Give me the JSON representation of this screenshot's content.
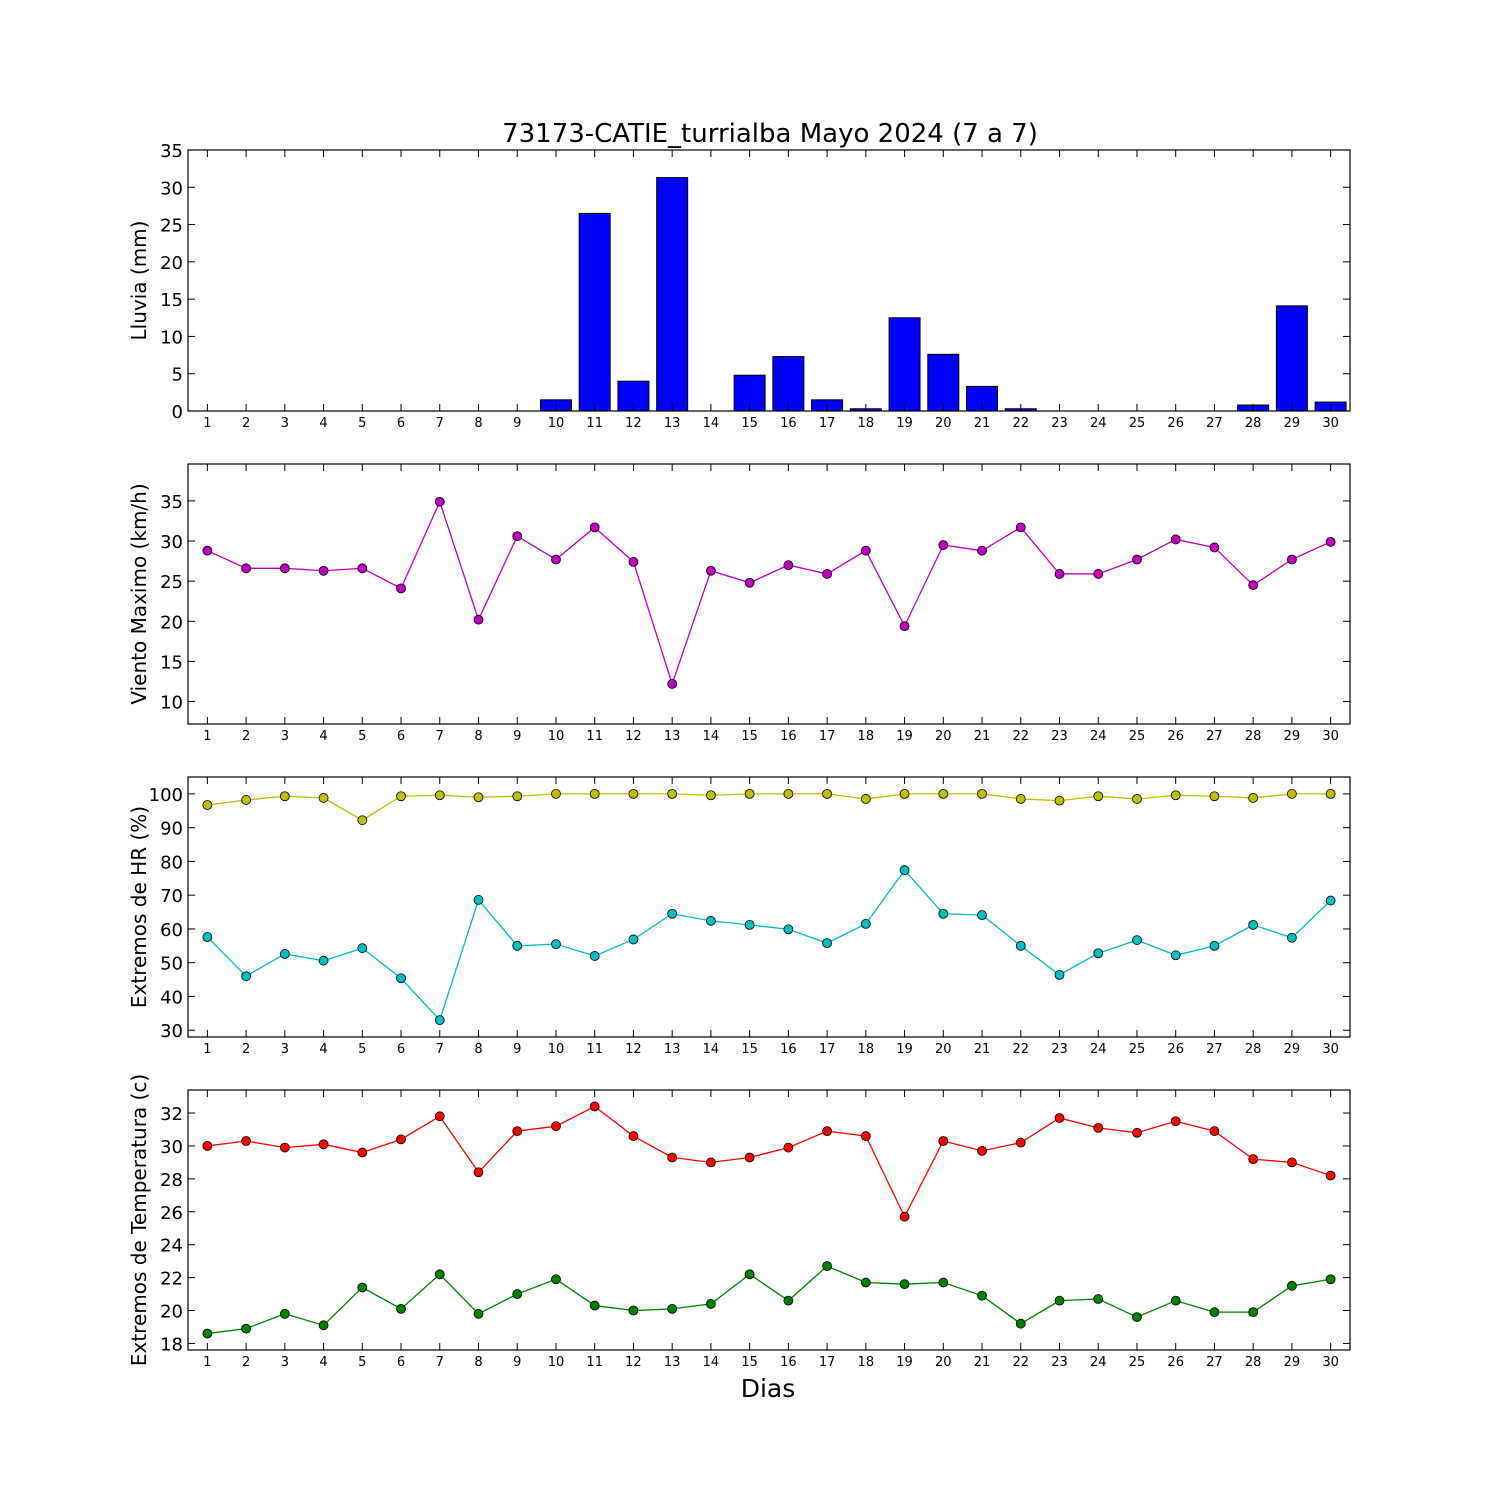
{
  "title": "73173-CATIE_turrialba Mayo 2024  (7 a 7)",
  "xlabel": "Dias",
  "chart_data": [
    {
      "type": "bar",
      "ylabel": "Lluvia (mm)",
      "categories": [
        1,
        2,
        3,
        4,
        5,
        6,
        7,
        8,
        9,
        10,
        11,
        12,
        13,
        14,
        15,
        16,
        17,
        18,
        19,
        20,
        21,
        22,
        23,
        24,
        25,
        26,
        27,
        28,
        29,
        30
      ],
      "ylim": [
        0,
        35
      ],
      "yticks": [
        0,
        5,
        10,
        15,
        20,
        25,
        30,
        35
      ],
      "series": [
        {
          "color": "#0000ff",
          "values": [
            0,
            0,
            0,
            0,
            0,
            0,
            0,
            0,
            0,
            1.5,
            26.5,
            4.0,
            31.3,
            0,
            4.8,
            7.3,
            1.5,
            0.3,
            12.5,
            7.6,
            3.3,
            0.3,
            0,
            0,
            0,
            0,
            0,
            0.8,
            14.1,
            1.2
          ]
        }
      ]
    },
    {
      "type": "line",
      "ylabel": "Viento Maximo (km/h)",
      "categories": [
        1,
        2,
        3,
        4,
        5,
        6,
        7,
        8,
        9,
        10,
        11,
        12,
        13,
        14,
        15,
        16,
        17,
        18,
        19,
        20,
        21,
        22,
        23,
        24,
        25,
        26,
        27,
        28,
        29,
        30
      ],
      "ylim": [
        7.2,
        39.6
      ],
      "yticks": [
        10,
        15,
        20,
        25,
        30,
        35
      ],
      "series": [
        {
          "color": "#bf00bf",
          "values": [
            28.8,
            26.6,
            26.6,
            26.3,
            26.6,
            24.1,
            34.9,
            20.2,
            30.6,
            27.7,
            31.7,
            27.4,
            12.2,
            26.3,
            24.8,
            27.0,
            25.9,
            28.8,
            19.4,
            29.5,
            28.8,
            31.7,
            25.9,
            25.9,
            27.7,
            30.2,
            29.2,
            24.5,
            27.7,
            29.9
          ]
        }
      ]
    },
    {
      "type": "line",
      "ylabel": "Extremos de HR (%)",
      "categories": [
        1,
        2,
        3,
        4,
        5,
        6,
        7,
        8,
        9,
        10,
        11,
        12,
        13,
        14,
        15,
        16,
        17,
        18,
        19,
        20,
        21,
        22,
        23,
        24,
        25,
        26,
        27,
        28,
        29,
        30
      ],
      "ylim": [
        28,
        105
      ],
      "yticks": [
        30,
        40,
        50,
        60,
        70,
        80,
        90,
        100
      ],
      "series": [
        {
          "color": "#bfbf00",
          "values": [
            96.7,
            98.2,
            99.3,
            98.8,
            92.2,
            99.3,
            99.6,
            99.0,
            99.3,
            100,
            100,
            100,
            100,
            99.6,
            100,
            100,
            100,
            98.5,
            100,
            100,
            100,
            98.5,
            98.0,
            99.3,
            98.5,
            99.6,
            99.3,
            98.8,
            100,
            100
          ]
        },
        {
          "color": "#00bfbf",
          "values": [
            57.6,
            46.0,
            52.6,
            50.6,
            54.3,
            45.4,
            33.0,
            68.6,
            55.0,
            55.5,
            52.0,
            56.9,
            64.5,
            62.4,
            61.2,
            59.9,
            55.8,
            61.5,
            77.4,
            64.5,
            64.1,
            55.0,
            46.4,
            52.8,
            56.7,
            52.2,
            55.0,
            61.2,
            57.4,
            68.4
          ]
        }
      ]
    },
    {
      "type": "line",
      "ylabel": "Extremos de Temperatura (c)",
      "categories": [
        1,
        2,
        3,
        4,
        5,
        6,
        7,
        8,
        9,
        10,
        11,
        12,
        13,
        14,
        15,
        16,
        17,
        18,
        19,
        20,
        21,
        22,
        23,
        24,
        25,
        26,
        27,
        28,
        29,
        30
      ],
      "ylim": [
        17.6,
        33.4
      ],
      "yticks": [
        18,
        20,
        22,
        24,
        26,
        28,
        30,
        32
      ],
      "series": [
        {
          "color": "#ff0000",
          "values": [
            30.0,
            30.3,
            29.9,
            30.1,
            29.6,
            30.4,
            31.8,
            28.4,
            30.9,
            31.2,
            32.4,
            30.6,
            29.3,
            29.0,
            29.3,
            29.9,
            30.9,
            30.6,
            25.7,
            30.3,
            29.7,
            30.2,
            31.7,
            31.1,
            30.8,
            31.5,
            30.9,
            29.2,
            29.0,
            28.2
          ]
        },
        {
          "color": "#008000",
          "values": [
            18.6,
            18.9,
            19.8,
            19.1,
            21.4,
            20.1,
            22.2,
            19.8,
            21.0,
            21.9,
            20.3,
            20.0,
            20.1,
            20.4,
            22.2,
            20.6,
            22.7,
            21.7,
            21.6,
            21.7,
            20.9,
            19.2,
            20.6,
            20.7,
            19.6,
            20.6,
            19.9,
            19.9,
            21.5,
            21.9
          ]
        }
      ]
    }
  ]
}
